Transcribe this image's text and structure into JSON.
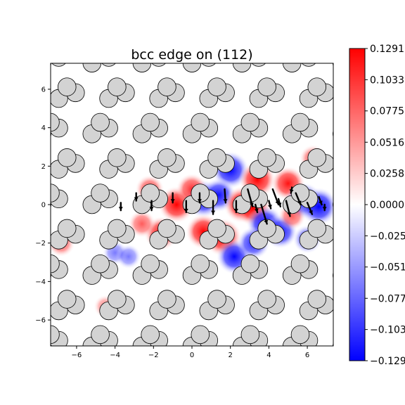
{
  "chart_data": {
    "type": "heatmap",
    "title": "bcc edge on (112)",
    "xlabel": "",
    "ylabel": "",
    "xlim": [
      -7.35,
      7.35
    ],
    "ylim": [
      -7.35,
      7.35
    ],
    "x_ticks": [
      -6,
      -4,
      -2,
      0,
      2,
      4,
      6
    ],
    "x_tick_labels": [
      "−6",
      "−4",
      "−2",
      "0",
      "2",
      "4",
      "6"
    ],
    "y_ticks": [
      -6,
      -4,
      -2,
      0,
      2,
      4,
      6
    ],
    "y_tick_labels": [
      "−6",
      "−4",
      "−2",
      "0",
      "2",
      "4",
      "6"
    ],
    "colorbar": {
      "cmap": "bwr",
      "vmin": -0.1291,
      "vmax": 0.1291,
      "ticks": [
        0.1291,
        0.1033,
        0.0775,
        0.0516,
        0.0258,
        0.0,
        -0.0258,
        -0.0516,
        -0.0775,
        -0.1033,
        -0.1291
      ],
      "tick_labels": [
        "0.1291",
        "0.1033",
        "0.0775",
        "0.0516",
        "0.0258",
        "0.0000",
        "−0.0258",
        "−0.0516",
        "−0.0775",
        "−0.1033",
        "−0.1291"
      ]
    },
    "atoms": {
      "marker": "circle",
      "facecolor": "#d3d3d3",
      "edgecolor": "#000000",
      "layers": [
        {
          "dx": 0.0,
          "dy": 0.0
        },
        {
          "dx": 0.87,
          "dy": 0.3
        },
        {
          "dx": 0.43,
          "dy": 0.6
        }
      ],
      "lattice_a": 2.6,
      "row_dy": 0.92,
      "row_shift": 0.87
    },
    "strain_blobs": [
      {
        "x": 2.0,
        "y": 1.8,
        "v": -0.125
      },
      {
        "x": 3.4,
        "y": 1.3,
        "v": 0.12
      },
      {
        "x": 5.0,
        "y": 1.1,
        "v": 0.1
      },
      {
        "x": 5.8,
        "y": 0.2,
        "v": -0.12
      },
      {
        "x": 6.6,
        "y": -0.1,
        "v": -0.13
      },
      {
        "x": 0.6,
        "y": 0.3,
        "v": -0.13
      },
      {
        "x": 1.4,
        "y": 0.5,
        "v": -0.1
      },
      {
        "x": 2.6,
        "y": 0.0,
        "v": 0.12
      },
      {
        "x": 3.2,
        "y": -0.2,
        "v": 0.11
      },
      {
        "x": -0.8,
        "y": 0.0,
        "v": 0.12
      },
      {
        "x": -2.2,
        "y": 0.8,
        "v": 0.06
      },
      {
        "x": 0.0,
        "y": 0.8,
        "v": 0.08
      },
      {
        "x": 1.6,
        "y": -1.7,
        "v": 0.13
      },
      {
        "x": 0.6,
        "y": -1.4,
        "v": 0.11
      },
      {
        "x": -1.6,
        "y": -1.5,
        "v": 0.1
      },
      {
        "x": -2.6,
        "y": -1.0,
        "v": 0.05
      },
      {
        "x": 3.8,
        "y": -1.0,
        "v": -0.12
      },
      {
        "x": 4.6,
        "y": -1.4,
        "v": -0.1
      },
      {
        "x": 2.2,
        "y": -2.7,
        "v": -0.11
      },
      {
        "x": 3.2,
        "y": -2.0,
        "v": -0.09
      },
      {
        "x": 6.0,
        "y": -1.8,
        "v": -0.06
      },
      {
        "x": 5.2,
        "y": -0.6,
        "v": 0.05
      },
      {
        "x": -6.8,
        "y": -2.0,
        "v": 0.05
      },
      {
        "x": -4.0,
        "y": -2.5,
        "v": -0.03
      },
      {
        "x": -3.3,
        "y": -2.7,
        "v": -0.03
      },
      {
        "x": -4.5,
        "y": -5.3,
        "v": 0.02
      },
      {
        "x": 6.3,
        "y": 2.4,
        "v": 0.05
      }
    ],
    "displacement_arrows": [
      {
        "x": 2.9,
        "y": 0.8,
        "dx": 0.25,
        "dy": -0.9
      },
      {
        "x": 3.6,
        "y": 0.0,
        "dx": 0.3,
        "dy": -1.0
      },
      {
        "x": 3.3,
        "y": 0.0,
        "dx": 0.1,
        "dy": -0.4
      },
      {
        "x": 4.2,
        "y": 0.8,
        "dx": 0.3,
        "dy": -0.8
      },
      {
        "x": 4.5,
        "y": 0.3,
        "dx": 0.1,
        "dy": -0.4
      },
      {
        "x": 4.9,
        "y": 0.2,
        "dx": 0.2,
        "dy": -0.8
      },
      {
        "x": 5.4,
        "y": 0.6,
        "dx": 0.25,
        "dy": -0.6
      },
      {
        "x": 6.0,
        "y": 0.1,
        "dx": 0.25,
        "dy": -0.6
      },
      {
        "x": 1.7,
        "y": 0.8,
        "dx": 0.05,
        "dy": -0.7
      },
      {
        "x": 2.3,
        "y": 0.2,
        "dx": 0.0,
        "dy": -0.6
      },
      {
        "x": 1.1,
        "y": 0.2,
        "dx": 0.0,
        "dy": -0.7
      },
      {
        "x": 0.4,
        "y": 0.6,
        "dx": 0.0,
        "dy": -0.5
      },
      {
        "x": -0.3,
        "y": 0.2,
        "dx": 0.0,
        "dy": -0.6
      },
      {
        "x": -1.0,
        "y": 0.6,
        "dx": 0.0,
        "dy": -0.5
      },
      {
        "x": -2.1,
        "y": 0.2,
        "dx": 0.0,
        "dy": -0.5
      },
      {
        "x": -2.9,
        "y": 0.6,
        "dx": 0.0,
        "dy": -0.4
      },
      {
        "x": -3.7,
        "y": 0.1,
        "dx": 0.0,
        "dy": -0.4
      },
      {
        "x": 6.6,
        "y": 0.4,
        "dx": 0.15,
        "dy": -0.4
      },
      {
        "x": 6.9,
        "y": 0.0,
        "dx": 0.0,
        "dy": -0.3
      },
      {
        "x": 5.2,
        "y": 0.9,
        "dx": -0.05,
        "dy": -0.3
      },
      {
        "x": 4.0,
        "y": 0.2,
        "dx": 0.1,
        "dy": -0.4
      }
    ]
  }
}
